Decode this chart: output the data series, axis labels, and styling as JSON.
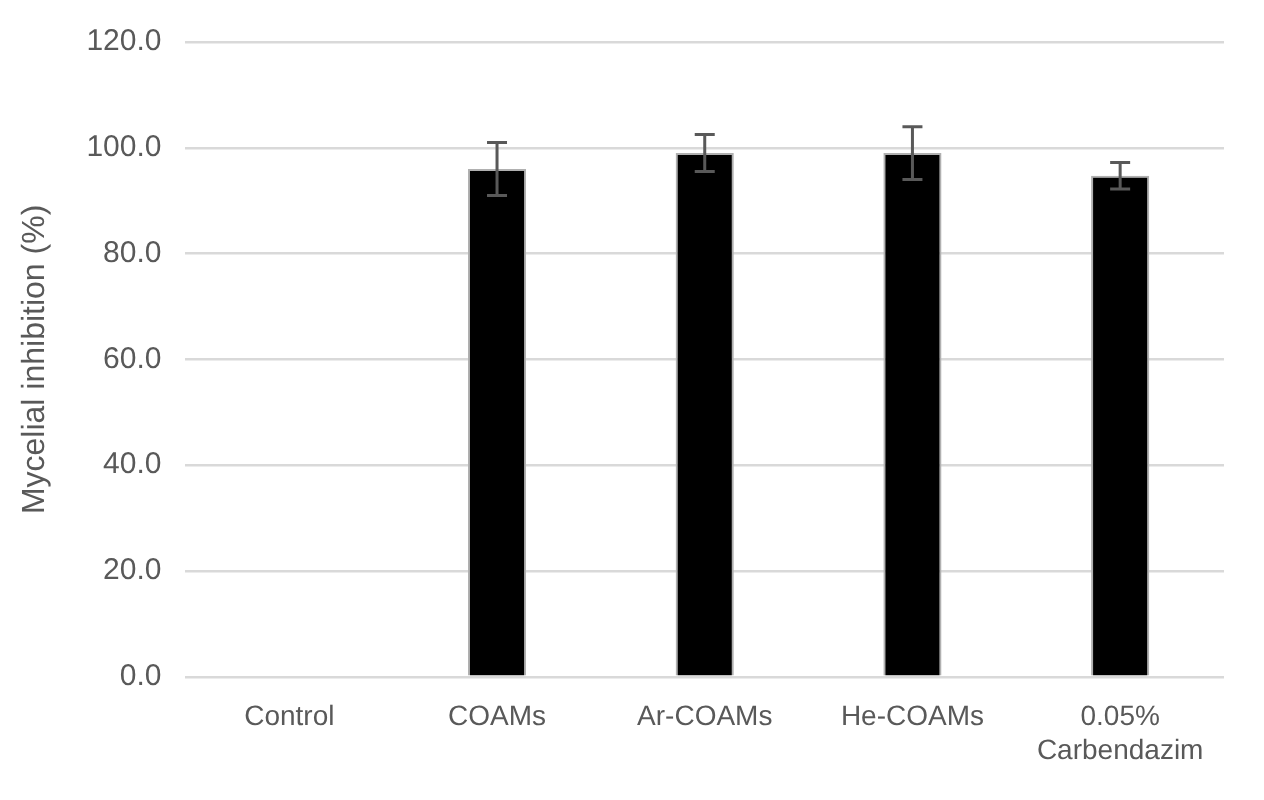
{
  "chart_data": {
    "type": "bar",
    "ylabel": "Mycelial inhibition (%)",
    "categories": [
      "Control",
      "COAMs",
      "Ar-COAMs",
      "He-COAMs",
      "0.05% Carbendazim"
    ],
    "values": [
      0,
      96,
      99,
      99,
      94.7
    ],
    "errors": [
      null,
      5,
      3.5,
      5,
      2.5
    ],
    "color": "#000000",
    "ylim": [
      0,
      120
    ],
    "yticks": [
      {
        "value": 0,
        "label": "0.0"
      },
      {
        "value": 20,
        "label": "20.0"
      },
      {
        "value": 40,
        "label": "40.0"
      },
      {
        "value": 60,
        "label": "60.0"
      },
      {
        "value": 80,
        "label": "80.0"
      },
      {
        "value": 100,
        "label": "100.0"
      },
      {
        "value": 120,
        "label": "120.0"
      }
    ],
    "grid": "y",
    "legend": false
  }
}
